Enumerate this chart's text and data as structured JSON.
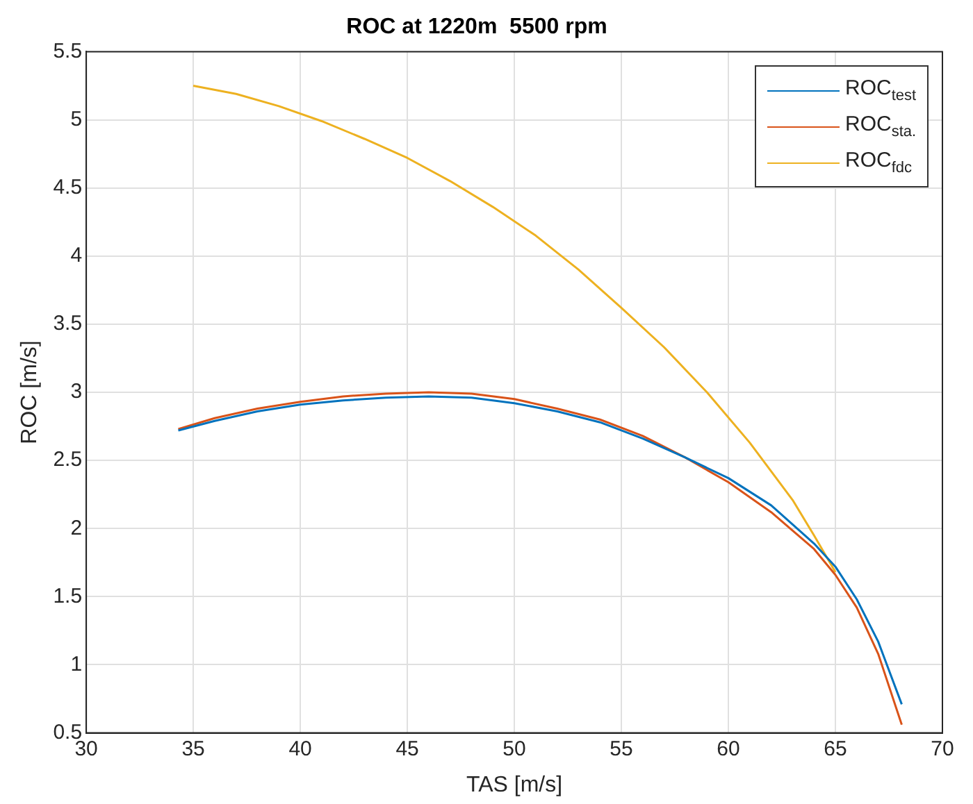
{
  "chart_data": {
    "type": "line",
    "title": "ROC at 1220m  5500 rpm",
    "xlabel": "TAS [m/s]",
    "ylabel": "ROC [m/s]",
    "xlim": [
      30,
      70
    ],
    "xticks": [
      30,
      35,
      40,
      45,
      50,
      55,
      60,
      65,
      70
    ],
    "ylim": [
      0.5,
      5.5
    ],
    "yticks": [
      0.5,
      1,
      1.5,
      2,
      2.5,
      3,
      3.5,
      4,
      4.5,
      5,
      5.5
    ],
    "grid": true,
    "legend": "top right",
    "marker": "none",
    "line_style": "solid",
    "series": [
      {
        "name": "ROC$_{test}$",
        "color": "#0072bd",
        "x": [
          34.3,
          36,
          38,
          40,
          42,
          44,
          46,
          48,
          50,
          52,
          54,
          56,
          58,
          60,
          62,
          64,
          65,
          66,
          67,
          68.1
        ],
        "values": [
          2.72,
          2.79,
          2.86,
          2.91,
          2.94,
          2.96,
          2.97,
          2.96,
          2.92,
          2.86,
          2.78,
          2.66,
          2.52,
          2.37,
          2.17,
          1.89,
          1.72,
          1.48,
          1.17,
          0.71
        ]
      },
      {
        "name": "ROC$_{sta.}$",
        "color": "#d95319",
        "x": [
          34.3,
          36,
          38,
          40,
          42,
          44,
          46,
          48,
          50,
          52,
          54,
          56,
          58,
          60,
          62,
          64,
          65,
          66,
          67,
          68.1
        ],
        "values": [
          2.73,
          2.81,
          2.88,
          2.93,
          2.97,
          2.99,
          3.0,
          2.99,
          2.95,
          2.88,
          2.8,
          2.68,
          2.52,
          2.34,
          2.12,
          1.85,
          1.66,
          1.42,
          1.08,
          0.56
        ]
      },
      {
        "name": "ROC$_{fdc}$",
        "color": "#edb120",
        "x": [
          35,
          37,
          39,
          41,
          43,
          45,
          47,
          49,
          51,
          53,
          55,
          57,
          59,
          61,
          63,
          64,
          65
        ],
        "values": [
          5.25,
          5.19,
          5.1,
          4.99,
          4.86,
          4.72,
          4.55,
          4.36,
          4.15,
          3.9,
          3.62,
          3.33,
          3.0,
          2.63,
          2.21,
          1.95,
          1.68
        ]
      }
    ]
  }
}
